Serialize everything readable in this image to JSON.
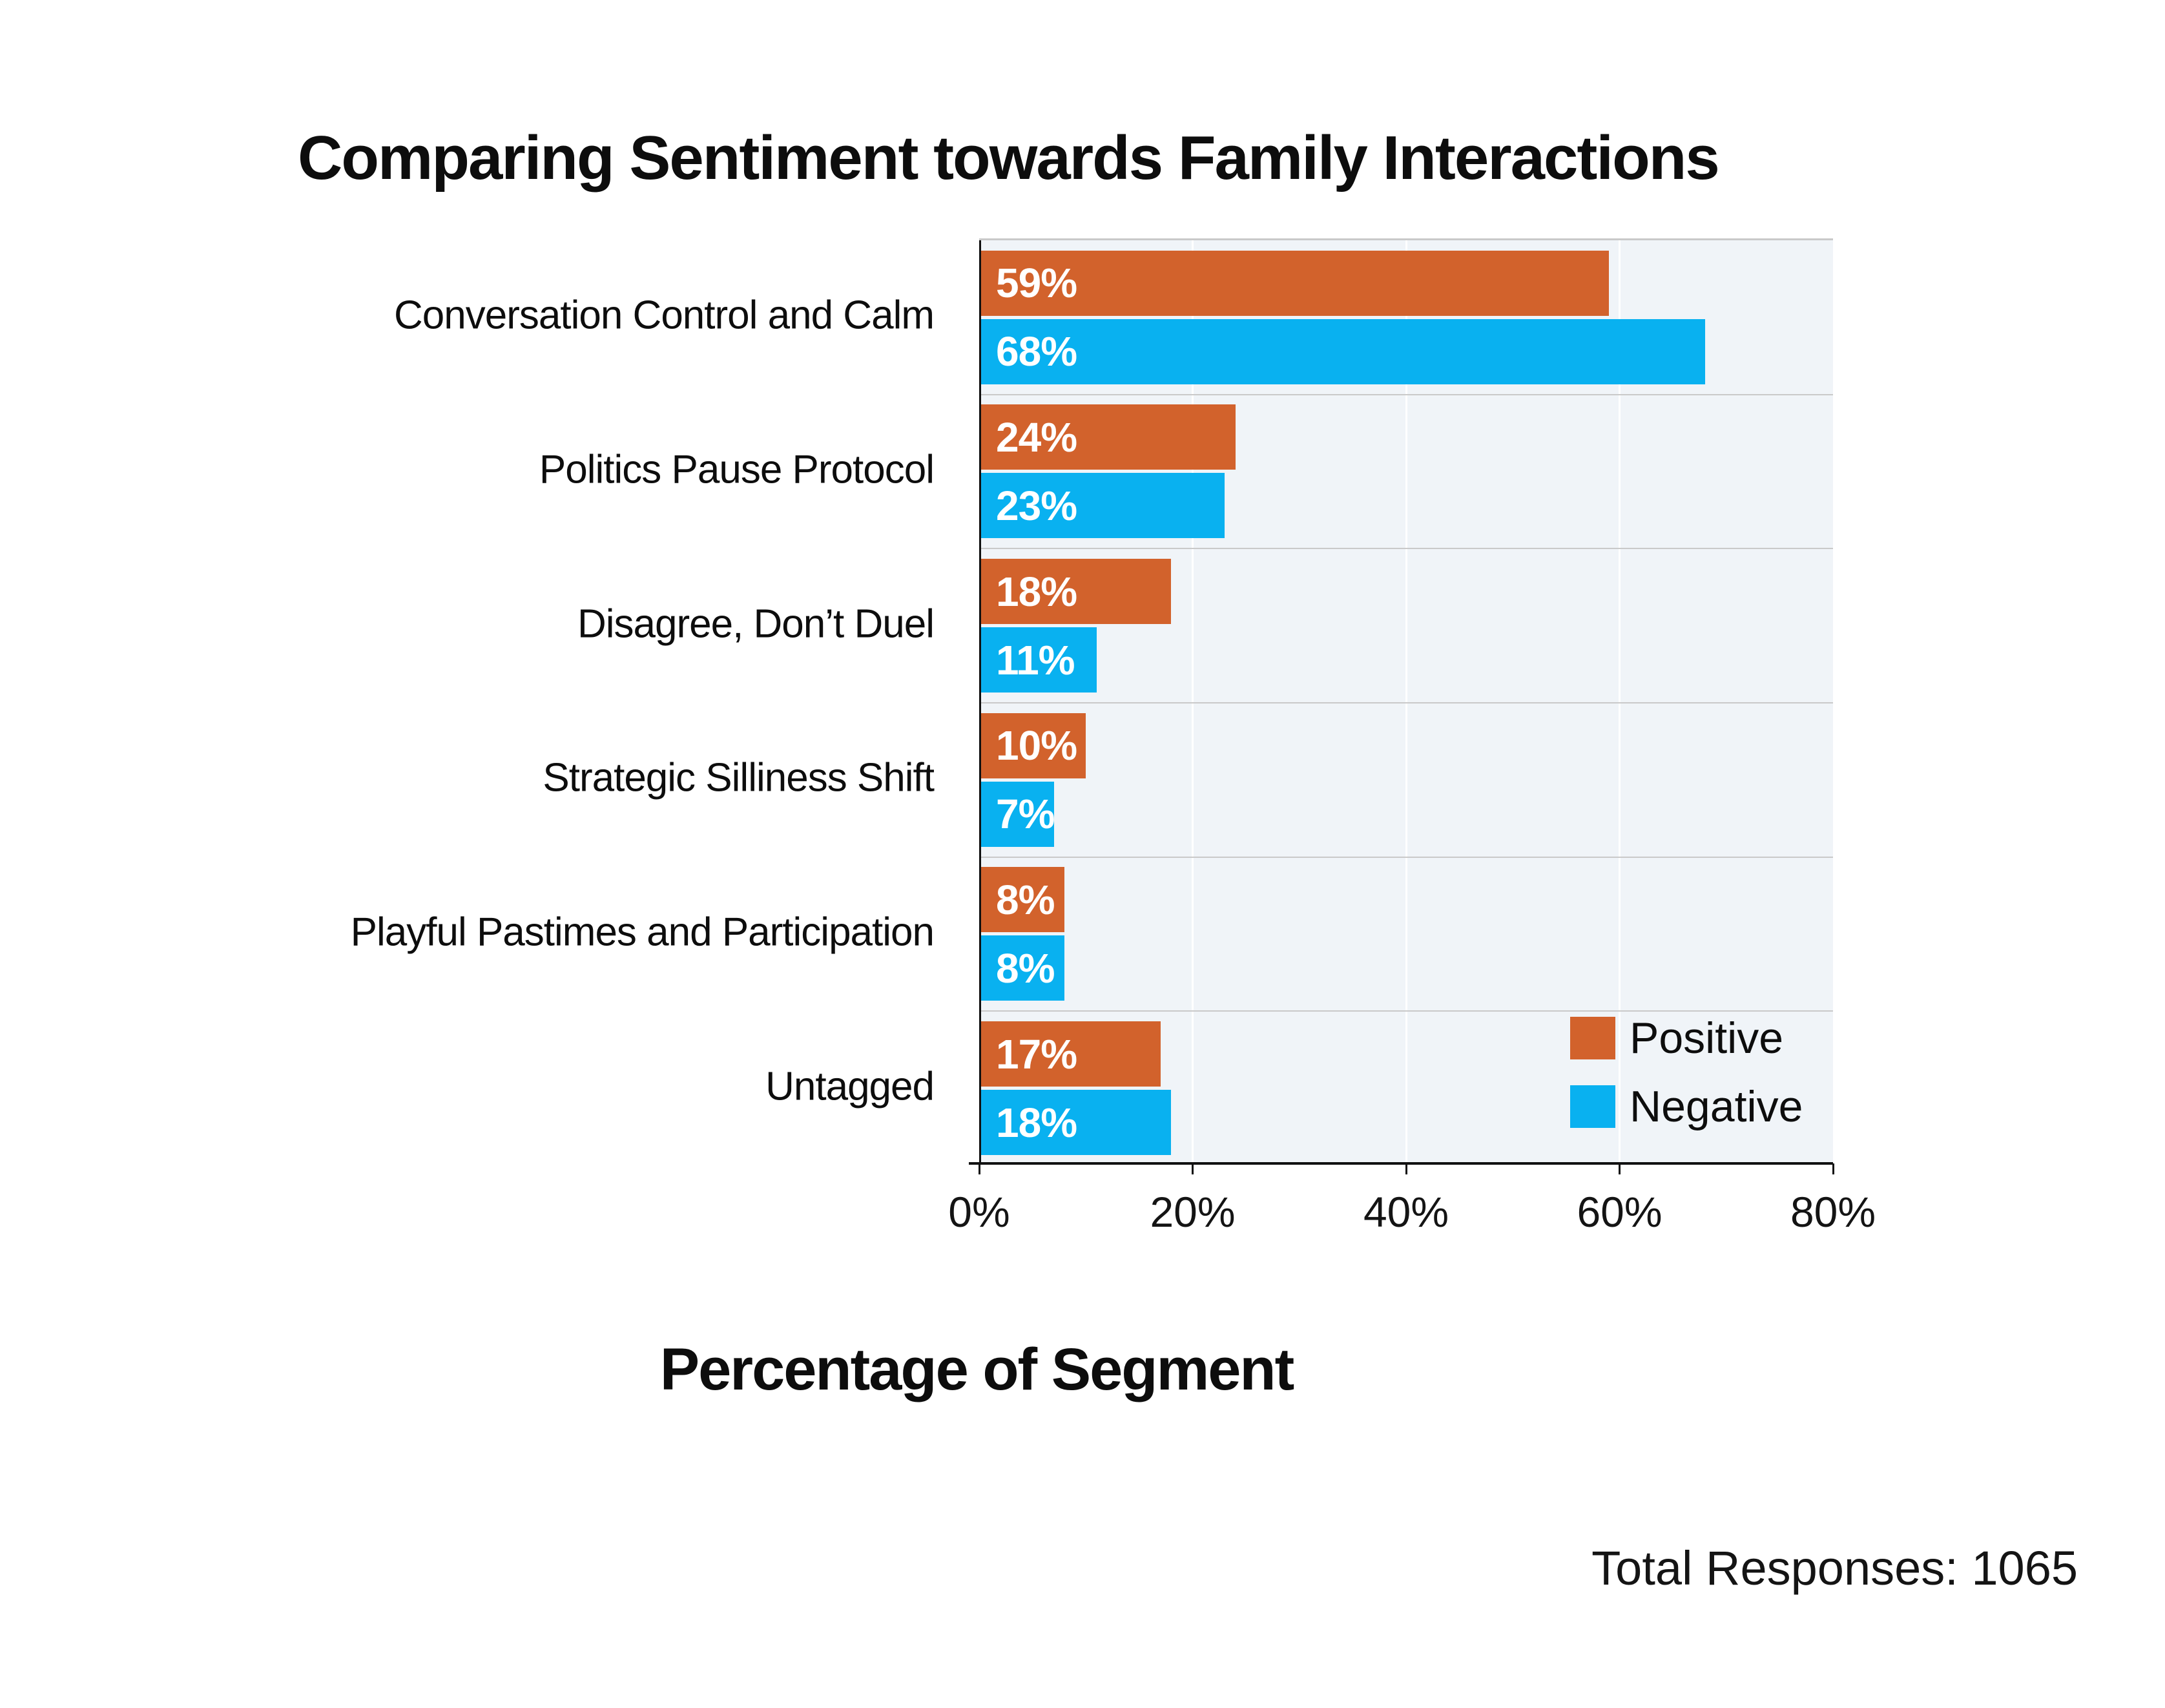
{
  "chart_data": {
    "type": "bar",
    "orientation": "horizontal",
    "title": "Comparing Sentiment towards Family Interactions",
    "xlabel": "Percentage of Segment",
    "categories": [
      "Conversation Control and Calm",
      "Politics Pause Protocol",
      "Disagree, Don’t Duel",
      "Strategic Silliness Shift",
      "Playful Pastimes and Participation",
      "Untagged"
    ],
    "series": [
      {
        "name": "Positive",
        "color": "#D2622C",
        "values": [
          59,
          24,
          18,
          10,
          8,
          17
        ]
      },
      {
        "name": "Negative",
        "color": "#09B1F0",
        "values": [
          68,
          23,
          11,
          7,
          8,
          18
        ]
      }
    ],
    "value_suffix": "%",
    "xlim": [
      0,
      80
    ],
    "x_ticks": [
      "0%",
      "20%",
      "40%",
      "60%",
      "80%"
    ],
    "grid": "vertical-white-lines",
    "legend_position": "inside-bottom-right",
    "legend_entries": [
      "Positive",
      "Negative"
    ],
    "note": "Total Responses: 1065",
    "colors": {
      "positive": "#D2622C",
      "negative": "#09B1F0",
      "plot_background": "#F0F4F8",
      "separator_line": "#C9C9C9",
      "axis_line": "#111111",
      "text": "#0d0d0d",
      "page_background": "#ffffff"
    }
  }
}
